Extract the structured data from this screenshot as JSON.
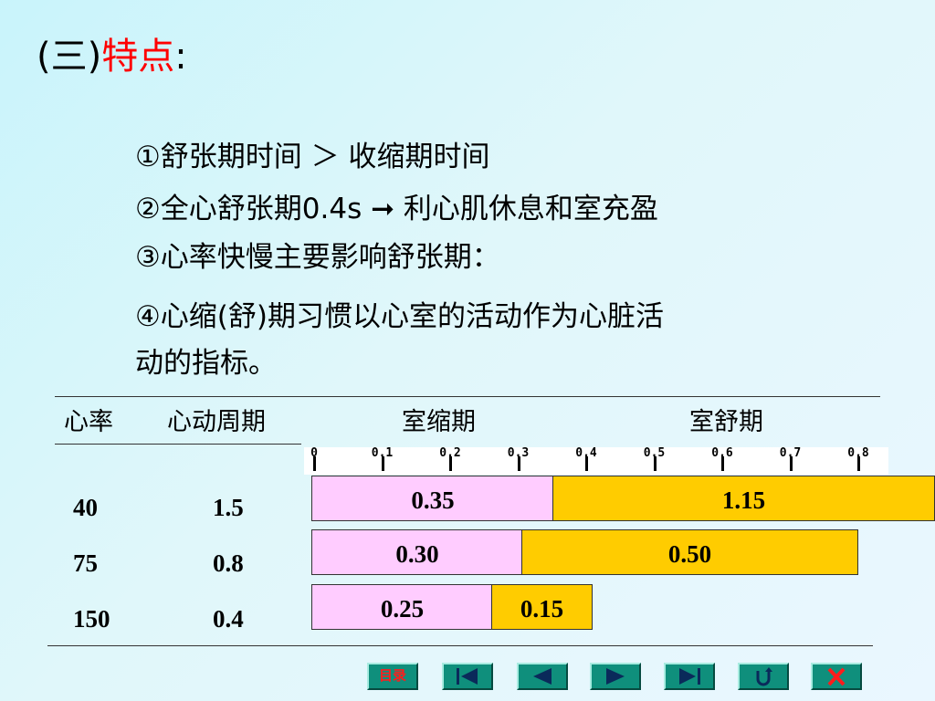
{
  "title": {
    "paren": "(三)",
    "keyword": "特点",
    "colon": ":"
  },
  "points": [
    "①舒张期时间 ＞ 收缩期时间",
    "②全心舒张期0.4s ➞ 利心肌休息和室充盈",
    "③心率快慢主要影响舒张期：",
    "④心缩(舒)期习惯以心室的活动作为心脏活",
    "动的指标。"
  ],
  "table": {
    "headers": [
      "心率",
      "心动周期",
      "室缩期",
      "室舒期"
    ],
    "scale_ticks": [
      "0",
      "0.1",
      "0.2",
      "0.3",
      "0.4",
      "0.5",
      "0.6",
      "0.7",
      "0.8"
    ],
    "rows": [
      {
        "rate": "40",
        "period": "1.5",
        "systole": "0.35",
        "diastole": "1.15"
      },
      {
        "rate": "75",
        "period": "0.8",
        "systole": "0.30",
        "diastole": "0.50"
      },
      {
        "rate": "150",
        "period": "0.4",
        "systole": "0.25",
        "diastole": "0.15"
      }
    ]
  },
  "nav": {
    "toc_label": "目录"
  },
  "colors": {
    "keyword": "#ff0000",
    "systole_fill": "#ffccff",
    "diastole_fill": "#ffcc00",
    "nav_button": "#0f8f7c"
  }
}
